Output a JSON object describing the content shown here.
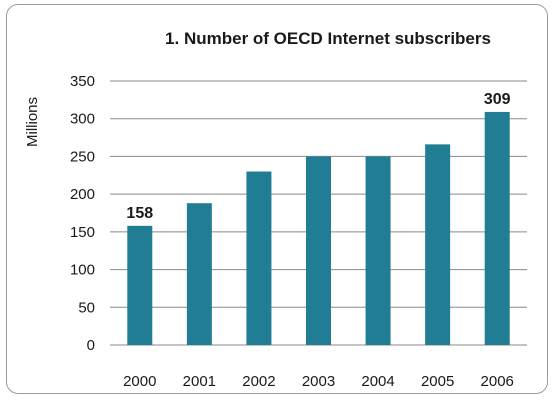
{
  "chart_data": {
    "type": "bar",
    "title": "1. Number of OECD Internet subscribers",
    "xlabel": "",
    "ylabel": "Millions",
    "categories": [
      "2000",
      "2001",
      "2002",
      "2003",
      "2004",
      "2005",
      "2006"
    ],
    "values": [
      158,
      188,
      230,
      250,
      250,
      266,
      309
    ],
    "data_labels": {
      "0": "158",
      "6": "309"
    },
    "ylim": [
      0,
      350
    ],
    "yticks": [
      "0",
      "50",
      "100",
      "150",
      "200",
      "250",
      "300",
      "350"
    ],
    "grid": true,
    "legend": "none",
    "bar_color": "#217d93",
    "grid_color": "#8a8a8a"
  }
}
